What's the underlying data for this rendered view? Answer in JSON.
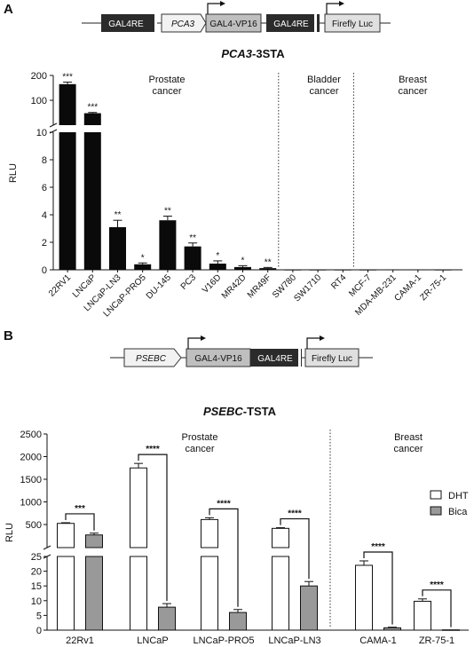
{
  "panel_a": {
    "label": "A",
    "construct": [
      "GAL4RE",
      "PCA3",
      "GAL4-VP16",
      "GAL4RE",
      "Firefly Luc"
    ]
  },
  "panel_b": {
    "label": "B",
    "construct": [
      "PSEBC",
      "GAL4-VP16",
      "GAL4RE",
      "Firefly Luc"
    ]
  },
  "colors": {
    "black_bar": "#0a0a0a",
    "white_bar": "#ffffff",
    "gray_bar": "#999999",
    "promoter_box": "#f2f2f2",
    "vp16_box": "#bfbfbf",
    "luc_box": "#e0e0e0",
    "gal4re_box": "#2b2b2b"
  },
  "chart_data": [
    {
      "type": "bar",
      "title_italic": "PCA3",
      "title_rest": "-3STA",
      "ylabel": "RLU",
      "yaxis": {
        "type": "broken",
        "lower_range": [
          0,
          10
        ],
        "upper_range": [
          0,
          200
        ],
        "lower_ticks": [
          "0",
          "2",
          "4",
          "6",
          "8",
          "10"
        ],
        "upper_ticks": [
          "100",
          "200"
        ]
      },
      "categories": [
        "22RV1",
        "LNCaP",
        "LNCaP-LN3",
        "LNCaP-PRO5",
        "DU-145",
        "PC3",
        "V16D",
        "MR42D",
        "MR49F",
        "SW780",
        "SW1710",
        "RT4",
        "MCF-7",
        "MDA-MB-231",
        "CAMA-1",
        "ZR-75-1"
      ],
      "values": [
        165,
        48,
        3.1,
        0.4,
        3.6,
        1.7,
        0.45,
        0.2,
        0.12,
        0.01,
        0.01,
        0.01,
        0.01,
        0.02,
        0.02,
        0.01
      ],
      "errors": [
        8,
        3,
        0.5,
        0.1,
        0.3,
        0.25,
        0.2,
        0.1,
        0.05,
        0,
        0,
        0,
        0,
        0,
        0,
        0
      ],
      "significance": [
        "***",
        "***",
        "**",
        "*",
        "**",
        "**",
        "*",
        "*",
        "**",
        "",
        "",
        "",
        "",
        "",
        "",
        ""
      ],
      "groups": [
        {
          "name_line1": "Prostate",
          "name_line2": "cancer"
        },
        {
          "name_line1": "Bladder",
          "name_line2": "cancer"
        },
        {
          "name_line1": "Breast",
          "name_line2": "cancer"
        }
      ]
    },
    {
      "type": "bar",
      "title_italic": "PSEBC",
      "title_rest": "-TSTA",
      "ylabel": "RLU",
      "yaxis": {
        "type": "broken",
        "lower_range": [
          0,
          25
        ],
        "upper_range": [
          0,
          2500
        ],
        "lower_ticks": [
          "0",
          "5",
          "10",
          "15",
          "20",
          "25"
        ],
        "upper_ticks": [
          "500",
          "1000",
          "1500",
          "2000",
          "2500"
        ]
      },
      "categories": [
        "22Rv1",
        "LNCaP",
        "LNCaP-PRO5",
        "LNCaP-LN3",
        "CAMA-1",
        "ZR-75-1"
      ],
      "series": [
        {
          "name": "DHT",
          "values": [
            525,
            1750,
            610,
            415,
            22,
            9.8
          ],
          "errors": [
            15,
            100,
            40,
            15,
            1.5,
            0.8
          ]
        },
        {
          "name": "Bica",
          "values": [
            270,
            7.8,
            6.0,
            15,
            0.8,
            0.1
          ],
          "errors": [
            40,
            1.2,
            1.0,
            1.5,
            0.2,
            0
          ]
        }
      ],
      "significance": [
        "***",
        "****",
        "****",
        "****",
        "****",
        "****"
      ],
      "groups": [
        {
          "name_line1": "Prostate",
          "name_line2": "cancer"
        },
        {
          "name_line1": "Breast",
          "name_line2": "cancer"
        }
      ]
    }
  ]
}
